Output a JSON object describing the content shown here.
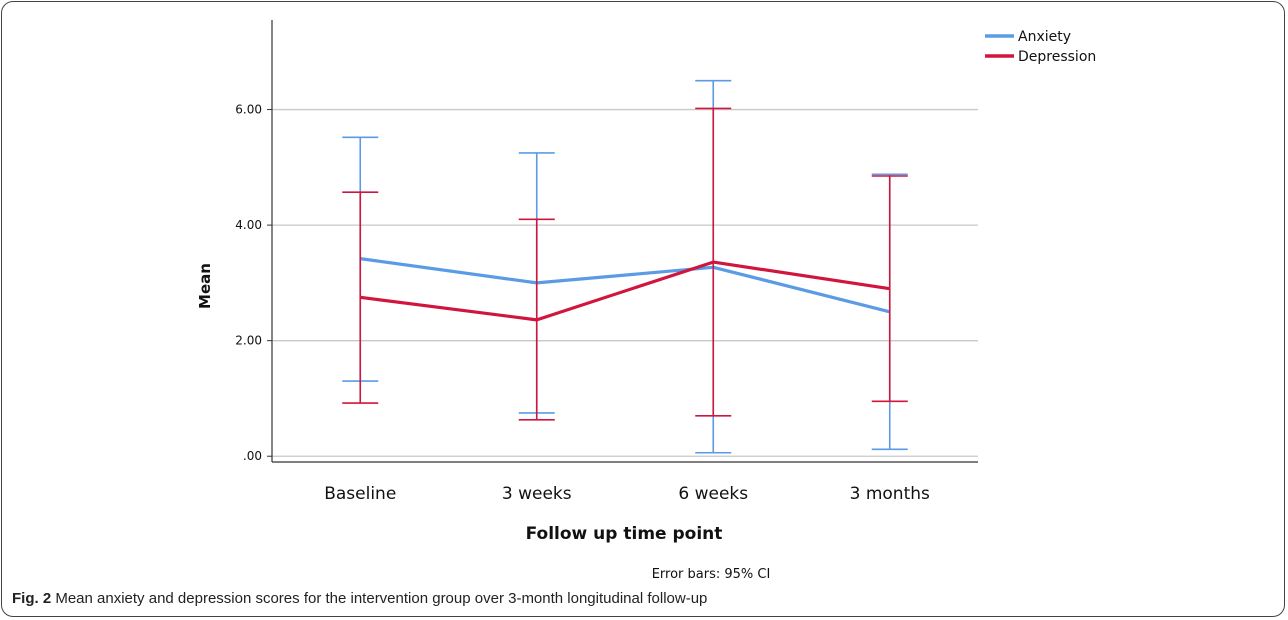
{
  "chart_data": {
    "type": "line",
    "categories": [
      "Baseline",
      "3 weeks",
      "6 weeks",
      "3 months"
    ],
    "series": [
      {
        "name": "Anxiety",
        "color": "#5b9be6",
        "values": [
          3.42,
          3.0,
          3.27,
          2.5
        ],
        "ci_lower": [
          1.3,
          0.75,
          0.06,
          0.12
        ],
        "ci_upper": [
          5.52,
          5.25,
          6.5,
          4.88
        ]
      },
      {
        "name": "Depression",
        "color": "#d0163e",
        "values": [
          2.75,
          2.36,
          3.36,
          2.9
        ],
        "ci_lower": [
          0.92,
          0.63,
          0.7,
          0.95
        ],
        "ci_upper": [
          4.57,
          4.1,
          6.02,
          4.85
        ]
      }
    ],
    "yticks": [
      ".00",
      "2.00",
      "4.00",
      "6.00"
    ],
    "ytick_values": [
      0,
      2,
      4,
      6
    ],
    "ylim": [
      -0.1,
      7.55
    ],
    "grid": true,
    "legend_position": "top-right",
    "xlabel": "Follow up time point",
    "ylabel": "Mean",
    "note": "Error bars: 95% CI"
  },
  "caption": {
    "label": "Fig. 2",
    "text": " Mean anxiety and depression scores for the intervention group over 3-month longitudinal follow-up"
  }
}
